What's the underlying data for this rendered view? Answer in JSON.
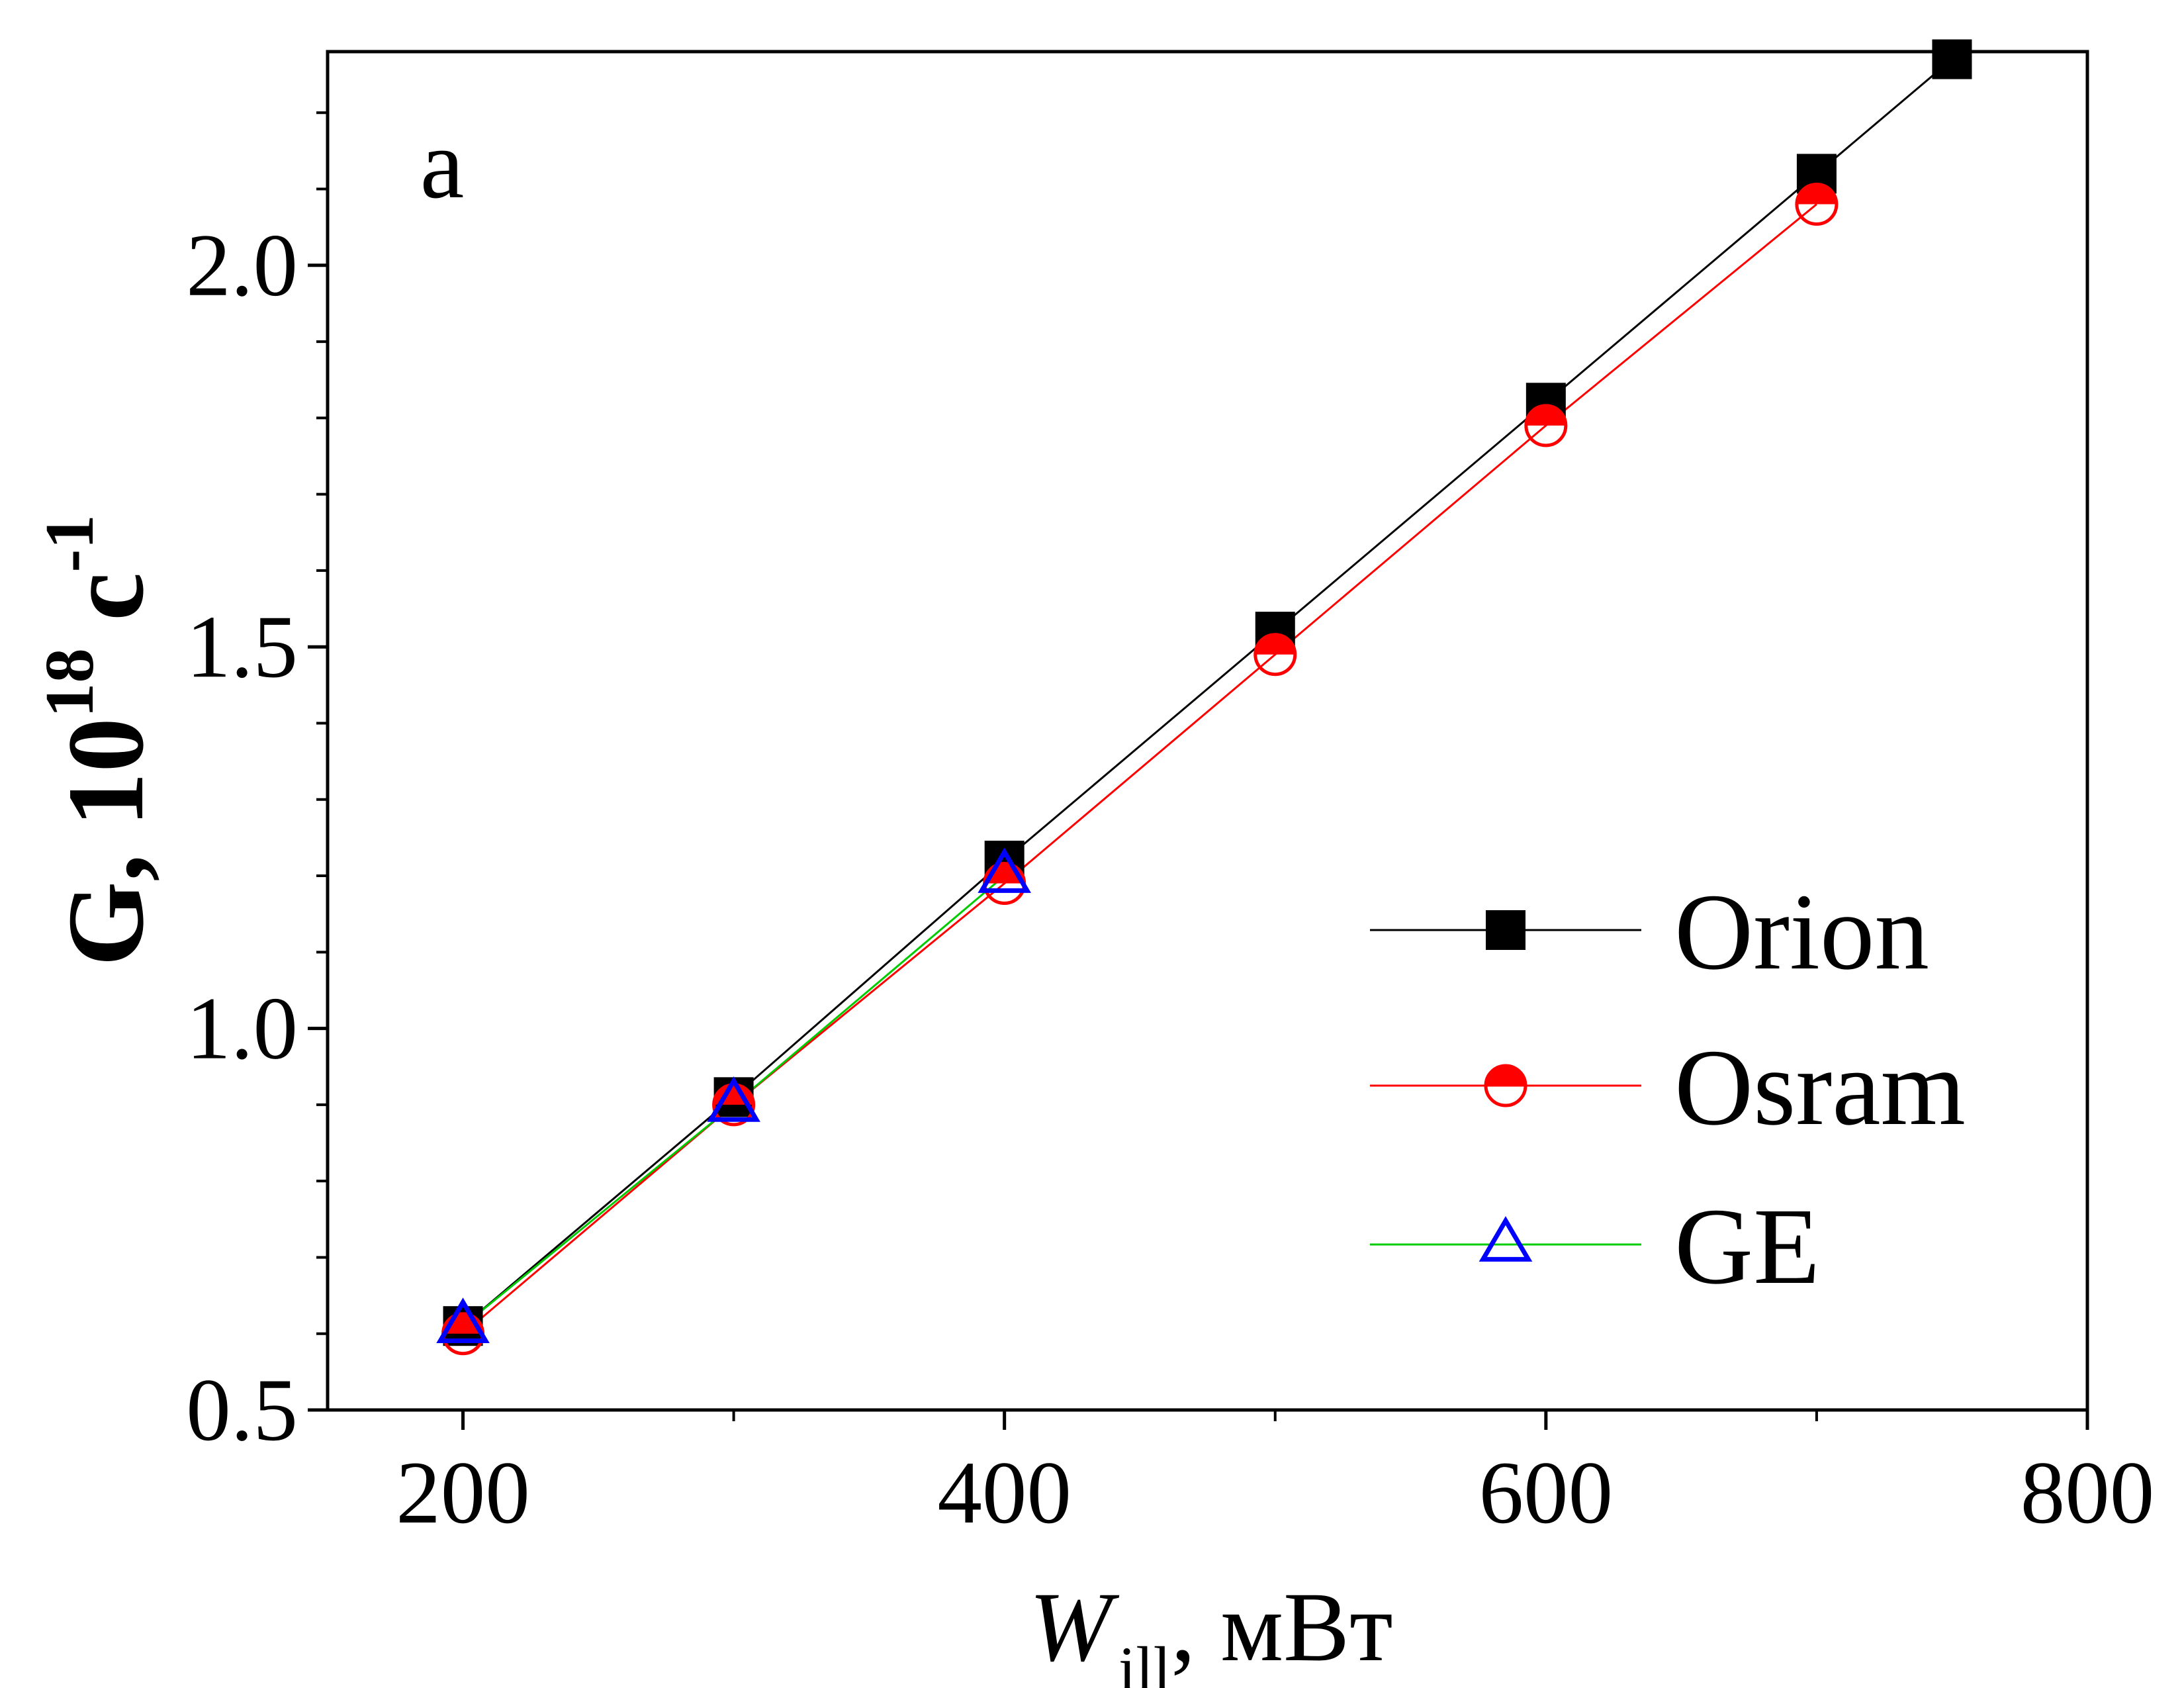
{
  "chart_data": {
    "type": "line",
    "panel_label": "a",
    "xlabel": {
      "main": "W",
      "sub": "ill",
      "unit": ", мВт"
    },
    "ylabel": {
      "main": "G",
      "mid": ", 10",
      "sup1": "18",
      "unit": " c",
      "sup2": "-1"
    },
    "xlim": [
      150,
      800
    ],
    "ylim": [
      0.5,
      2.28
    ],
    "x_major_ticks": [
      200,
      400,
      600,
      800
    ],
    "x_tick_labels": [
      "200",
      "400",
      "600",
      "800"
    ],
    "x_minor_ticks": [
      300,
      500,
      700
    ],
    "y_major_ticks": [
      0.5,
      1.0,
      1.5,
      2.0
    ],
    "y_tick_labels": [
      "0.5",
      "1.0",
      "1.5",
      "2.0"
    ],
    "y_minor_ticks": [
      0.6,
      0.7,
      0.8,
      0.9,
      1.1,
      1.2,
      1.3,
      1.4,
      1.6,
      1.7,
      1.8,
      1.9,
      2.1,
      2.2
    ],
    "legend_position": "right",
    "series": [
      {
        "name": "Orion",
        "color": "#000000",
        "marker": "filled-square",
        "x": [
          200,
          300,
          400,
          500,
          600,
          700,
          750
        ],
        "y": [
          0.61,
          0.91,
          1.22,
          1.52,
          1.82,
          2.12,
          2.27
        ]
      },
      {
        "name": "Osram",
        "color": "#ff0000",
        "marker": "half-filled-circle",
        "x": [
          200,
          300,
          400,
          500,
          600,
          700
        ],
        "y": [
          0.6,
          0.9,
          1.19,
          1.49,
          1.79,
          2.08
        ]
      },
      {
        "name": "GE",
        "color": "#0000ff",
        "line_color": "#00cc00",
        "marker": "open-triangle",
        "x": [
          200,
          300,
          400
        ],
        "y": [
          0.61,
          0.9,
          1.2
        ]
      }
    ]
  }
}
